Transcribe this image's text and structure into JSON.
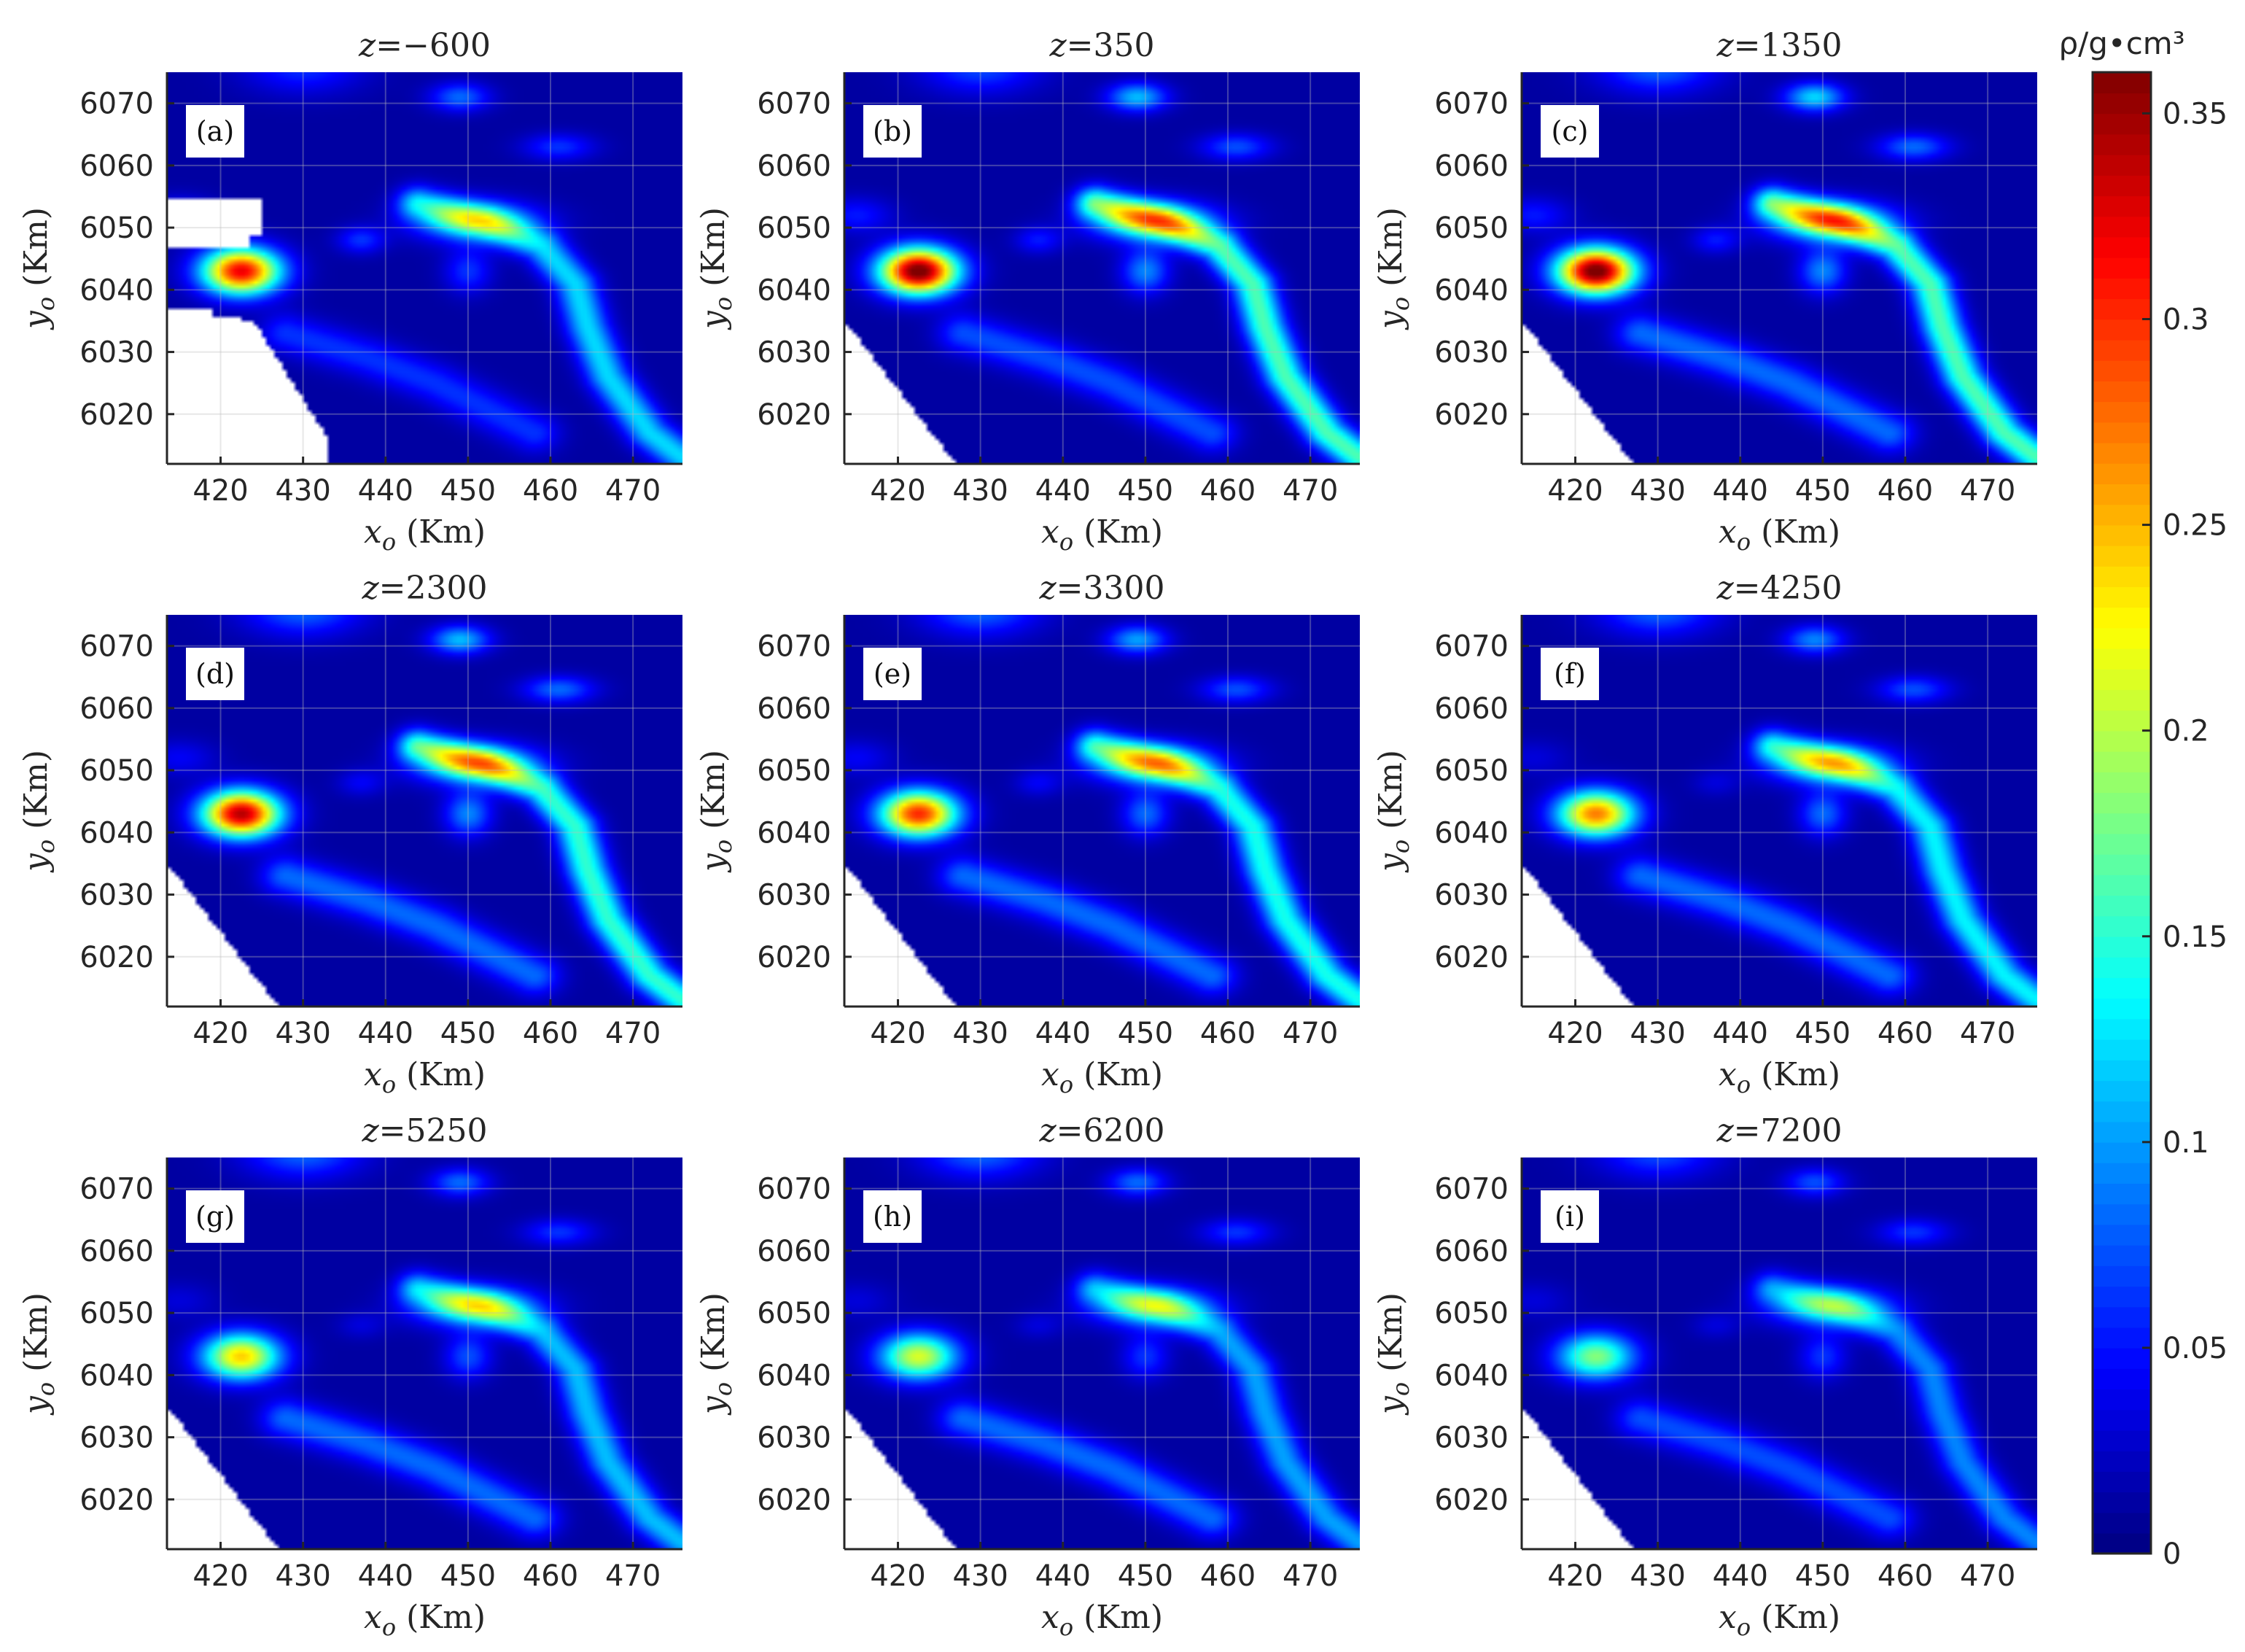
{
  "chart_data": {
    "type": "heatmap",
    "colormap": "jet",
    "grid": true,
    "colorbar": {
      "label": "ρ/g•cm³",
      "range": [
        0,
        0.36
      ],
      "ticks": [
        0,
        0.05,
        0.1,
        0.15,
        0.2,
        0.25,
        0.3,
        0.35
      ],
      "tick_labels": [
        "0",
        "0.05",
        "0.1",
        "0.15",
        "0.2",
        "0.25",
        "0.3",
        "0.35"
      ],
      "placement": "right"
    },
    "xlim": [
      413.5,
      476
    ],
    "ylim": [
      6012,
      6075
    ],
    "xticks": [
      420,
      430,
      440,
      450,
      460,
      470
    ],
    "xtick_labels": [
      "420",
      "430",
      "440",
      "450",
      "460",
      "470"
    ],
    "yticks": [
      6020,
      6030,
      6040,
      6050,
      6060,
      6070
    ],
    "ytick_labels": [
      "6020",
      "6030",
      "6040",
      "6050",
      "6060",
      "6070"
    ],
    "xlabel": "x_o (Km)",
    "ylabel": "y_o (Km)",
    "xlabel_parts": {
      "var": "x",
      "sub": "o",
      "unit": " (Km)"
    },
    "ylabel_parts": {
      "var": "y",
      "sub": "o",
      "unit": " (Km)"
    },
    "features": [
      {
        "kind": "anomaly",
        "x": 422.5,
        "y": 6043,
        "sx": 3.3,
        "sy": 2.6
      },
      {
        "kind": "blob",
        "x": 451,
        "y": 6051,
        "sx": 5,
        "sy": 2.2
      },
      {
        "kind": "ridge",
        "path": [
          [
            444,
            6054
          ],
          [
            452,
            6051
          ],
          [
            459,
            6047
          ],
          [
            463,
            6041
          ],
          [
            464.5,
            6034
          ],
          [
            467,
            6026
          ],
          [
            472,
            6017
          ],
          [
            476,
            6013
          ]
        ],
        "width": 1.8
      },
      {
        "kind": "blob",
        "x": 449,
        "y": 6071,
        "sx": 2.5,
        "sy": 1.6
      },
      {
        "kind": "blob",
        "x": 461,
        "y": 6063,
        "sx": 3,
        "sy": 1.5
      },
      {
        "kind": "blob",
        "x": 450,
        "y": 6043,
        "sx": 2,
        "sy": 2.5
      },
      {
        "kind": "ridge",
        "path": [
          [
            428,
            6033
          ],
          [
            438,
            6029
          ],
          [
            446,
            6025
          ],
          [
            452,
            6021
          ],
          [
            458,
            6017
          ]
        ],
        "width": 2.2
      },
      {
        "kind": "blob",
        "x": 430,
        "y": 6076,
        "sx": 5,
        "sy": 3
      },
      {
        "kind": "blob",
        "x": 415,
        "y": 6052,
        "sx": 3,
        "sy": 2
      },
      {
        "kind": "blob",
        "x": 437,
        "y": 6048,
        "sx": 2,
        "sy": 1.5
      }
    ],
    "panels": [
      {
        "tag": "(a)",
        "title_var": "z",
        "title_value": "−600",
        "z": -600,
        "peak": 0.31,
        "features": [
          0.31,
          0.12,
          0.11,
          0.07,
          0.05,
          0.05,
          0.05,
          0.05,
          0.05,
          0.05
        ],
        "mask": "coast-a"
      },
      {
        "tag": "(b)",
        "title_var": "z",
        "title_value": "350",
        "z": 350,
        "peak": 0.36,
        "features": [
          0.36,
          0.14,
          0.15,
          0.1,
          0.06,
          0.08,
          0.06,
          0.06,
          0.04,
          0.04
        ],
        "mask": "wedge"
      },
      {
        "tag": "(c)",
        "title_var": "z",
        "title_value": "1350",
        "z": 1350,
        "peak": 0.36,
        "features": [
          0.36,
          0.15,
          0.15,
          0.11,
          0.07,
          0.08,
          0.07,
          0.07,
          0.04,
          0.04
        ],
        "mask": "wedge"
      },
      {
        "tag": "(d)",
        "title_var": "z",
        "title_value": "2300",
        "z": 2300,
        "peak": 0.33,
        "features": [
          0.33,
          0.14,
          0.14,
          0.1,
          0.07,
          0.08,
          0.07,
          0.07,
          0.03,
          0.03
        ],
        "mask": "wedge"
      },
      {
        "tag": "(e)",
        "title_var": "z",
        "title_value": "3300",
        "z": 3300,
        "peak": 0.29,
        "features": [
          0.29,
          0.14,
          0.13,
          0.09,
          0.06,
          0.07,
          0.07,
          0.07,
          0.03,
          0.03
        ],
        "mask": "wedge"
      },
      {
        "tag": "(f)",
        "title_var": "z",
        "title_value": "4250",
        "z": 4250,
        "peak": 0.26,
        "features": [
          0.26,
          0.13,
          0.12,
          0.08,
          0.06,
          0.07,
          0.07,
          0.07,
          0.02,
          0.02
        ],
        "mask": "wedge"
      },
      {
        "tag": "(g)",
        "title_var": "z",
        "title_value": "5250",
        "z": 5250,
        "peak": 0.23,
        "features": [
          0.23,
          0.13,
          0.1,
          0.07,
          0.05,
          0.06,
          0.07,
          0.07,
          0.02,
          0.02
        ],
        "mask": "wedge"
      },
      {
        "tag": "(h)",
        "title_var": "z",
        "title_value": "6200",
        "z": 6200,
        "peak": 0.2,
        "features": [
          0.2,
          0.12,
          0.09,
          0.07,
          0.05,
          0.05,
          0.07,
          0.07,
          0.02,
          0.02
        ],
        "mask": "wedge"
      },
      {
        "tag": "(i)",
        "title_var": "z",
        "title_value": "7200",
        "z": 7200,
        "peak": 0.17,
        "features": [
          0.17,
          0.11,
          0.08,
          0.06,
          0.05,
          0.05,
          0.06,
          0.06,
          0.02,
          0.02
        ],
        "mask": "wedge"
      }
    ]
  }
}
